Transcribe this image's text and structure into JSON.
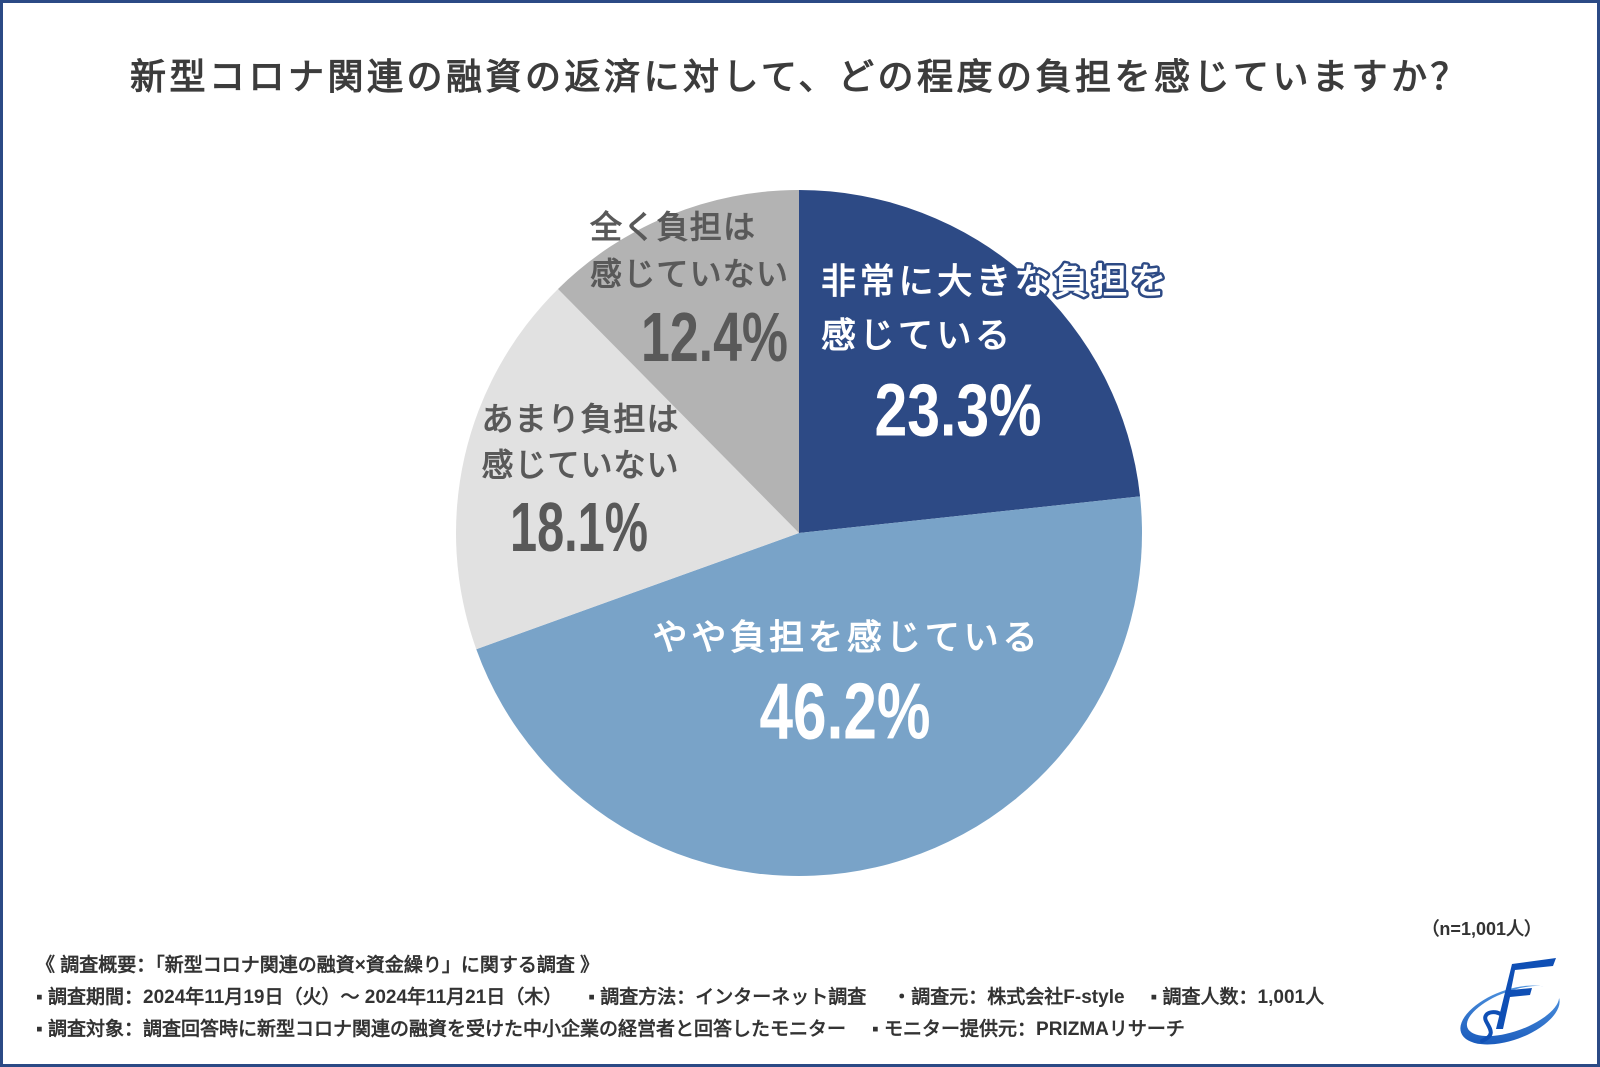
{
  "chart_data": {
    "type": "pie",
    "title": "新型コロナ関連の融資の返済に対して、どの程度の負担を感じていますか？",
    "categories": [
      [
        "非常に大きな負担を",
        "感じている"
      ],
      [
        "やや負担を感じている"
      ],
      [
        "あまり負担は",
        "感じていない"
      ],
      [
        "全く負担は",
        "感じていない"
      ]
    ],
    "values": [
      23.3,
      46.2,
      18.1,
      12.4
    ],
    "value_labels": [
      "23.3%",
      "46.2%",
      "18.1%",
      "12.4%"
    ],
    "colors": [
      "#2d4a85",
      "#79a3c8",
      "#e1e1e1",
      "#b3b3b3"
    ],
    "label_colors": [
      "#ffffff",
      "#ffffff",
      "#595959",
      "#595959"
    ]
  },
  "survey": {
    "sample_size": "（n=1,001人）",
    "heading": "《 調査概要：「新型コロナ関連の融資×資金繰り」に関する調査 》",
    "period": "▪ 調査期間：2024年11月19日（火）～ 2024年11月21日（木）",
    "method": "▪ 調査方法：インターネット調査",
    "organizer": "・調査元：株式会社F-style",
    "respondents": "▪ 調査人数：1,001人",
    "target": "▪ 調査対象：調査回答時に新型コロナ関連の融資を受けた中小企業の経営者と回答したモニター",
    "panel_provider": "▪ モニター提供元：PRIZMAリサーチ"
  },
  "logo": {
    "icon": "f-style-logo",
    "colors": [
      "#0f4fb5",
      "#5ea3e8"
    ]
  },
  "frame": {
    "border_color": "#2b4a85"
  }
}
